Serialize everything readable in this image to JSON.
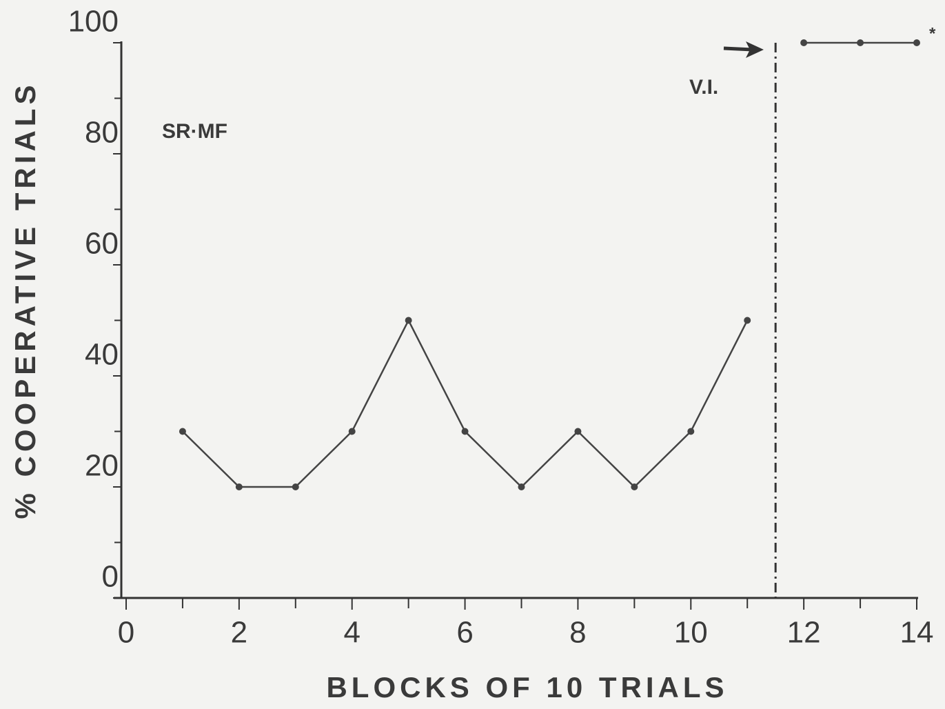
{
  "chart_data": {
    "type": "line",
    "x_label": "BLOCKS OF 10 TRIALS",
    "y_label": "% COOPERATIVE TRIALS",
    "annotations": [
      "SR·MF",
      "V.I.",
      "*"
    ],
    "series": [
      {
        "color": "#444444",
        "x": [
          1,
          2,
          3,
          4,
          5,
          6,
          7,
          8,
          9,
          10,
          11
        ],
        "values": [
          30,
          20,
          20,
          30,
          50,
          30,
          20,
          30,
          20,
          30,
          50
        ]
      },
      {
        "color": "#444444",
        "x": [
          12,
          13,
          14
        ],
        "values": [
          100,
          100,
          100
        ]
      }
    ],
    "vline": 11.5,
    "xlim": [
      0,
      14
    ],
    "xticks": [
      0,
      2,
      4,
      6,
      8,
      10,
      12,
      14
    ],
    "xminor_ticks": [
      1,
      3,
      5,
      7,
      9,
      11,
      13
    ],
    "ylim": [
      0,
      100
    ],
    "yticks": [
      0,
      20,
      40,
      60,
      80,
      100
    ],
    "yminor_ticks": [
      10,
      30,
      50,
      70,
      90
    ]
  }
}
